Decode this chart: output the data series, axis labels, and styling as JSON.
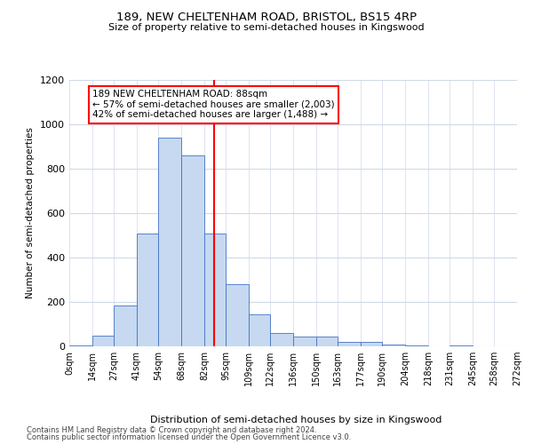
{
  "title1": "189, NEW CHELTENHAM ROAD, BRISTOL, BS15 4RP",
  "title2": "Size of property relative to semi-detached houses in Kingswood",
  "xlabel": "Distribution of semi-detached houses by size in Kingswood",
  "ylabel": "Number of semi-detached properties",
  "bin_labels": [
    "0sqm",
    "14sqm",
    "27sqm",
    "41sqm",
    "54sqm",
    "68sqm",
    "82sqm",
    "95sqm",
    "109sqm",
    "122sqm",
    "136sqm",
    "150sqm",
    "163sqm",
    "177sqm",
    "190sqm",
    "204sqm",
    "218sqm",
    "231sqm",
    "245sqm",
    "258sqm",
    "272sqm"
  ],
  "bin_edges": [
    0,
    14,
    27,
    41,
    54,
    68,
    82,
    95,
    109,
    122,
    136,
    150,
    163,
    177,
    190,
    204,
    218,
    231,
    245,
    258,
    272
  ],
  "bar_heights": [
    5,
    50,
    185,
    510,
    940,
    860,
    510,
    280,
    145,
    60,
    45,
    45,
    20,
    20,
    10,
    5,
    0,
    5,
    0,
    0
  ],
  "bar_color": "#c6d9f1",
  "bar_edge_color": "#4472c4",
  "vline_x": 88,
  "vline_color": "red",
  "annotation_text": "189 NEW CHELTENHAM ROAD: 88sqm\n← 57% of semi-detached houses are smaller (2,003)\n42% of semi-detached houses are larger (1,488) →",
  "annotation_box_color": "white",
  "annotation_box_edge": "red",
  "ylim": [
    0,
    1200
  ],
  "yticks": [
    0,
    200,
    400,
    600,
    800,
    1000,
    1200
  ],
  "footer1": "Contains HM Land Registry data © Crown copyright and database right 2024.",
  "footer2": "Contains public sector information licensed under the Open Government Licence v3.0.",
  "bg_color": "white",
  "grid_color": "#d0d8e8"
}
